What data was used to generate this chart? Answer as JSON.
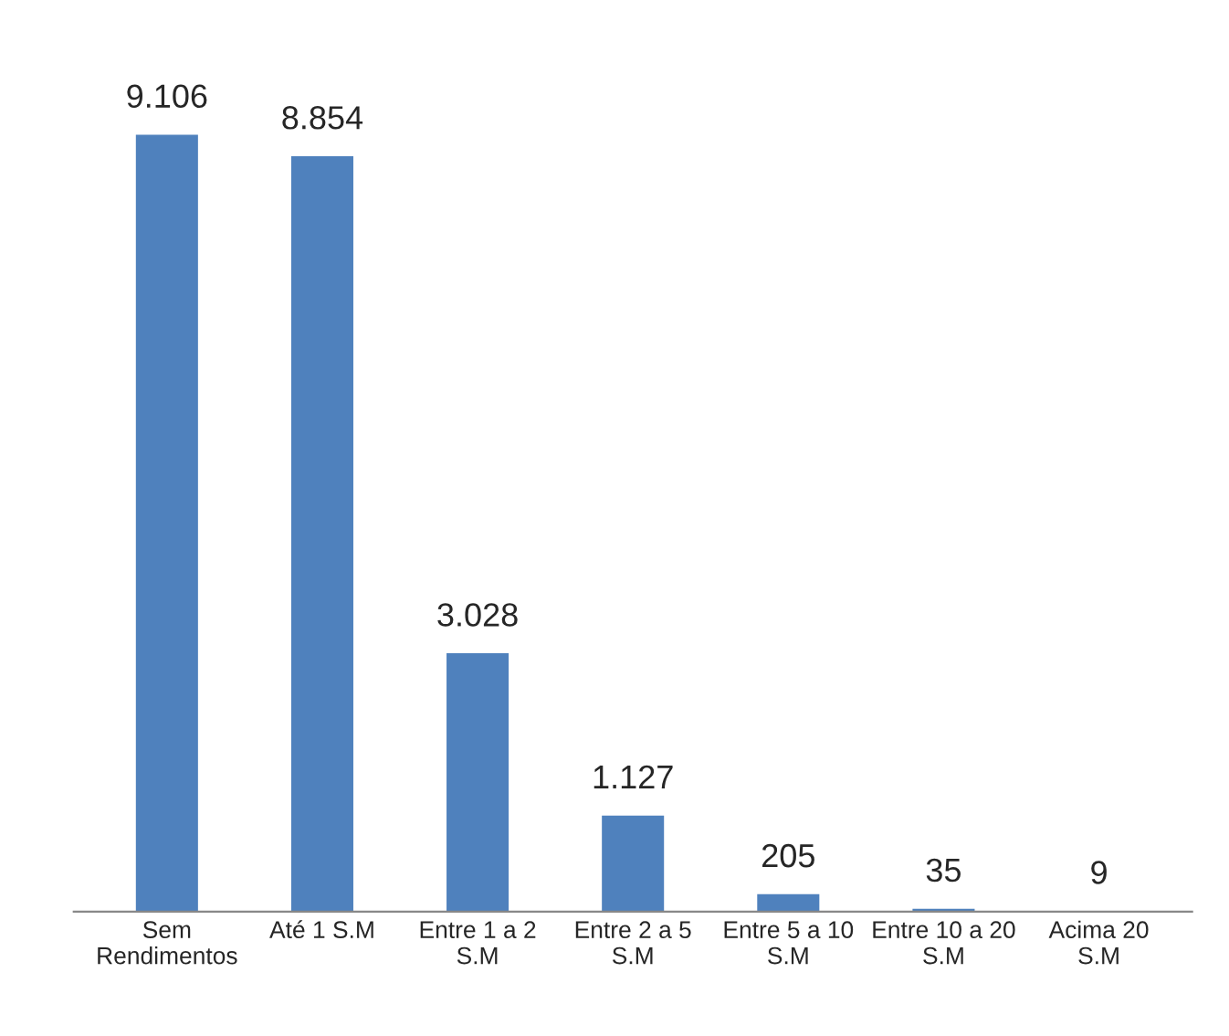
{
  "chart_data": {
    "type": "bar",
    "categories": [
      "Sem\nRendimentos",
      "Até 1 S.M",
      "Entre 1 a 2\nS.M",
      "Entre 2 a 5\nS.M",
      "Entre 5 a 10\nS.M",
      "Entre 10 a 20\nS.M",
      "Acima 20\nS.M"
    ],
    "values": [
      9106,
      8854,
      3028,
      1127,
      205,
      35,
      9
    ],
    "value_labels": [
      "9.106",
      "8.854",
      "3.028",
      "1.127",
      "205",
      "35",
      "9"
    ],
    "color": "#4f81bd"
  }
}
